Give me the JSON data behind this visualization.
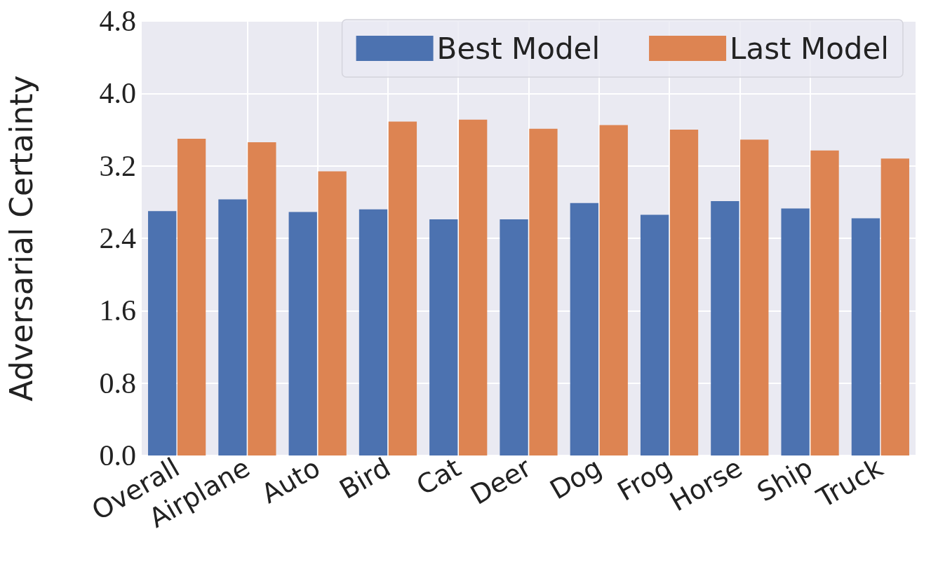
{
  "chart_data": {
    "type": "bar",
    "ylabel": "Adversarial Certainty",
    "categories": [
      "Overall",
      "Airplane",
      "Auto",
      "Bird",
      "Cat",
      "Deer",
      "Dog",
      "Frog",
      "Horse",
      "Ship",
      "Truck"
    ],
    "series": [
      {
        "name": "Best Model",
        "color": "#4c72b0",
        "values": [
          2.7,
          2.83,
          2.69,
          2.72,
          2.61,
          2.61,
          2.79,
          2.66,
          2.81,
          2.73,
          2.62
        ]
      },
      {
        "name": "Last Model",
        "color": "#dd8452",
        "values": [
          3.5,
          3.46,
          3.14,
          3.69,
          3.71,
          3.61,
          3.65,
          3.6,
          3.49,
          3.37,
          3.28
        ]
      }
    ],
    "ylim": [
      0,
      4.8
    ],
    "yticks": [
      {
        "value": 0,
        "label": "0.0"
      },
      0.8,
      1.6,
      2.4,
      3.2,
      {
        "value": 4,
        "label": "4.0"
      },
      4.8
    ],
    "grid": true,
    "legend": "top right"
  }
}
